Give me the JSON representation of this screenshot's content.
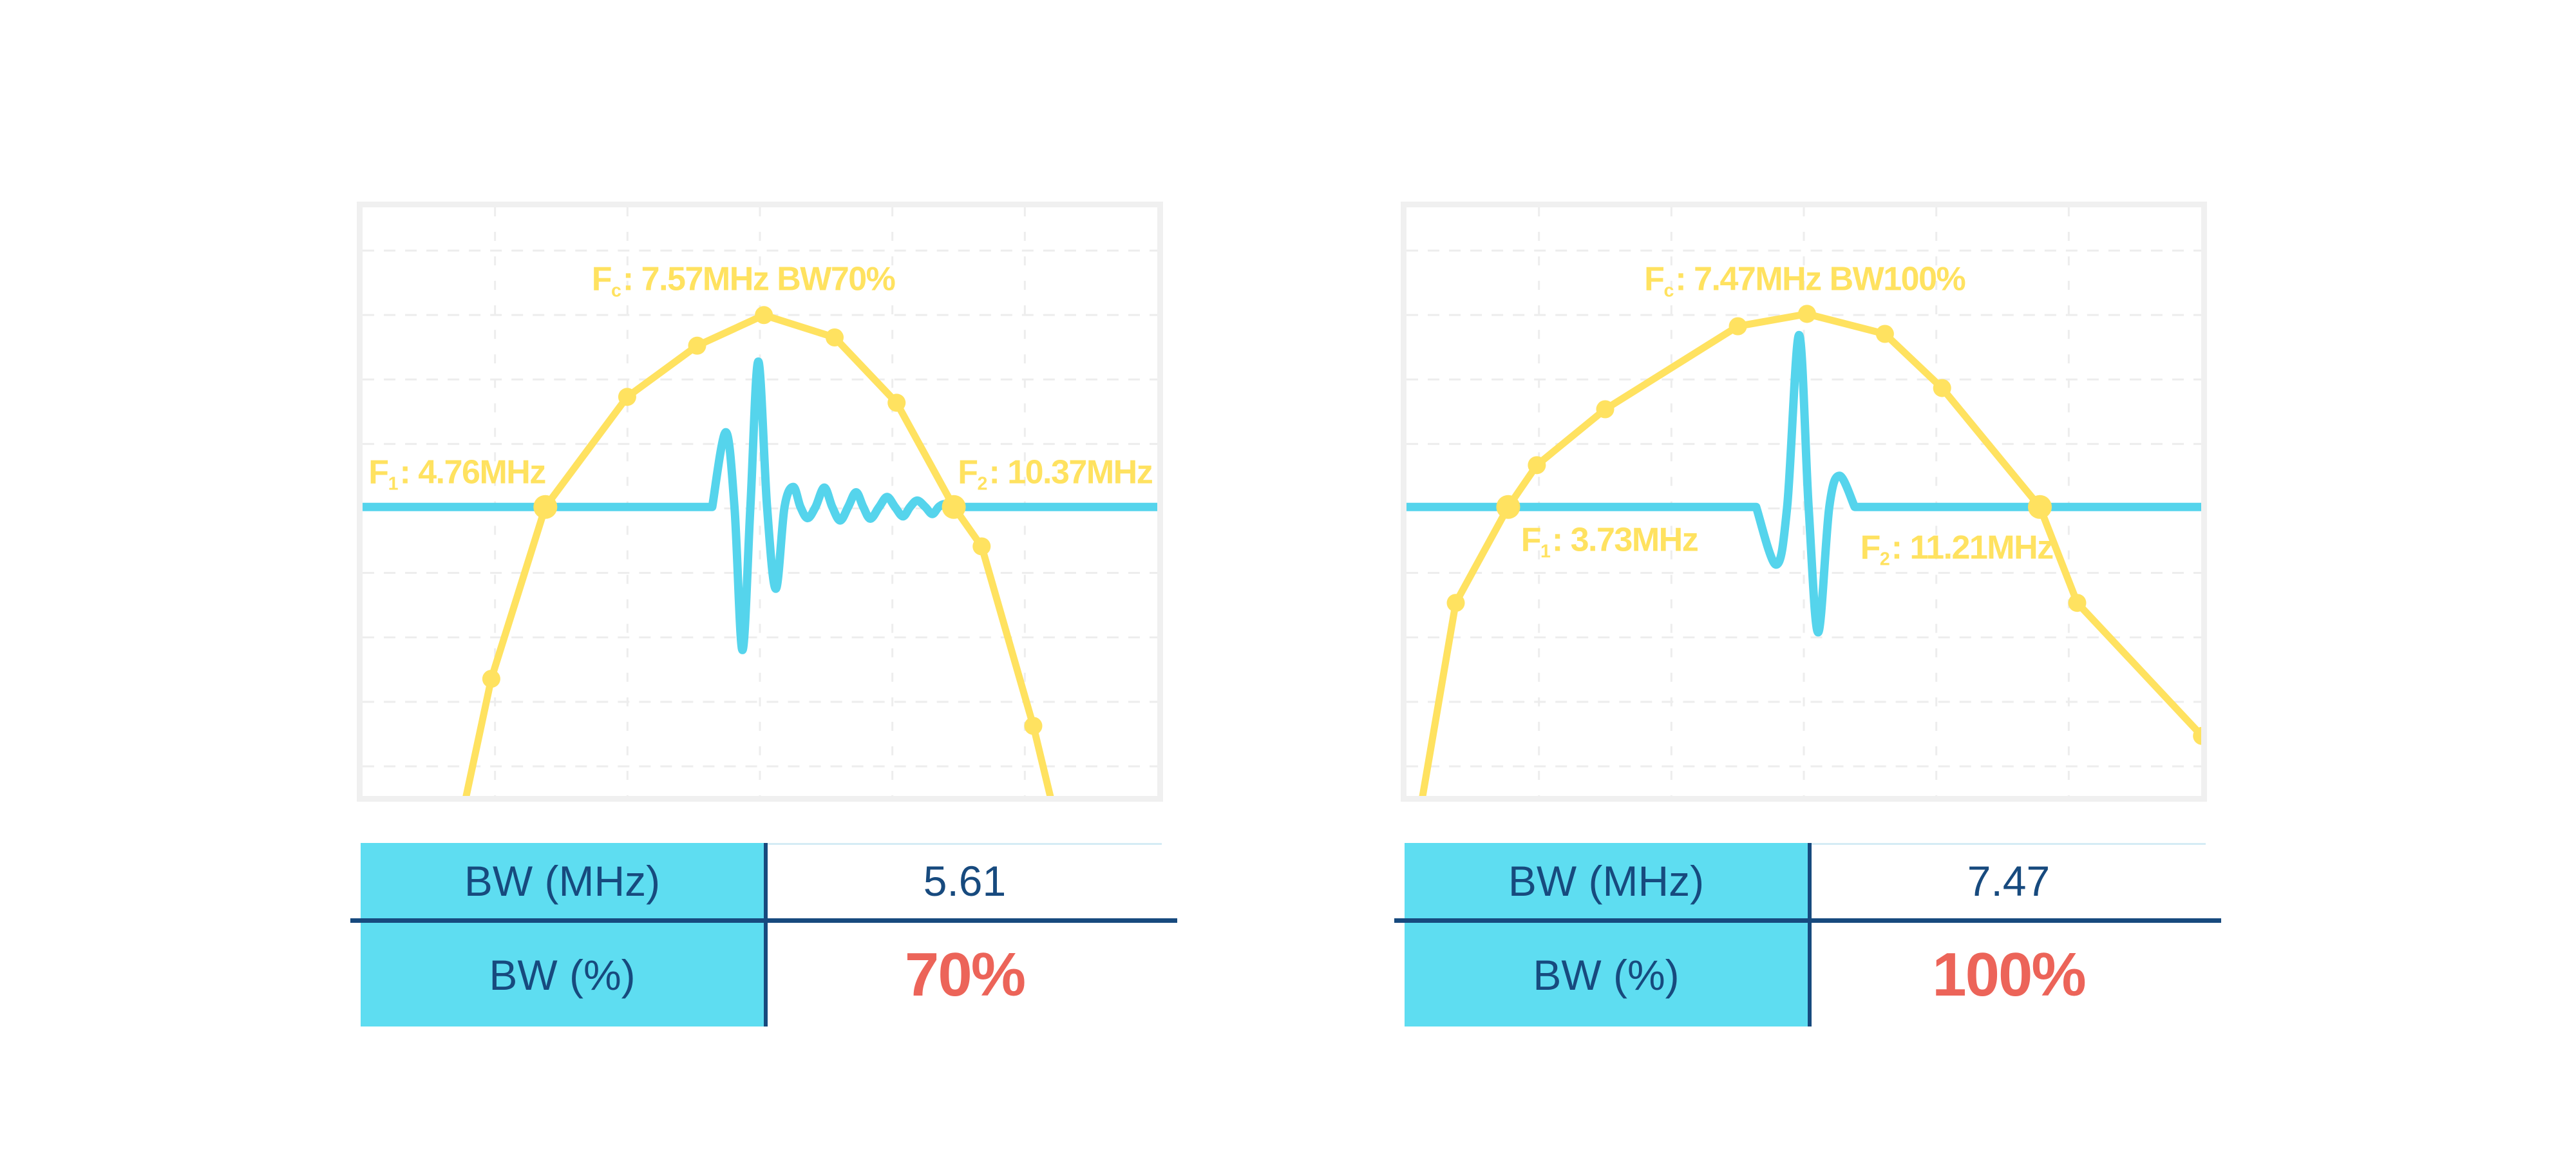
{
  "colors": {
    "spectrum_yellow": "#FFE260",
    "waveform_blue": "#55D4EC",
    "table_cell_cyan": "#5EDDF1",
    "navy": "#174A7E",
    "red": "#EC6459",
    "frame_gray": "#F0F0F0",
    "grid_gray": "#EDEDED",
    "pale_top_border": "#D5ECF5",
    "plot_background": "#FFFFFF"
  },
  "chart_data": [
    {
      "type": "line",
      "name": "pulse-spectrum-narrowband",
      "title": "",
      "xlabel": "",
      "ylabel": "",
      "grid": true,
      "legend_position": "none",
      "annotations": {
        "fc": {
          "pre": "F",
          "sub": "c",
          "text": ": 7.57MHz BW70%"
        },
        "f1": {
          "pre": "F",
          "sub": "1",
          "text": ": 4.76MHz"
        },
        "f2": {
          "pre": "F",
          "sub": "2",
          "text": ": 10.37MHz"
        }
      },
      "center_freq_mhz": 7.57,
      "f1_mhz": 4.76,
      "f2_mhz": 10.37,
      "bw_mhz": 5.61,
      "bw_percent": "70%",
      "baseline_pct": 50.9,
      "spectrum": {
        "points_pct": [
          [
            12.9,
            100.9
          ],
          [
            16.2,
            80.1
          ],
          [
            23.0,
            50.9
          ],
          [
            33.3,
            32.2
          ],
          [
            42.1,
            23.5
          ],
          [
            50.5,
            18.3
          ],
          [
            59.4,
            22.1
          ],
          [
            67.2,
            33.2
          ],
          [
            74.4,
            50.9
          ],
          [
            77.9,
            57.6
          ],
          [
            84.4,
            88.1
          ],
          [
            86.8,
            101.5
          ]
        ],
        "freq_mhz_est": [
          3.68,
          4.04,
          4.76,
          5.89,
          6.85,
          7.77,
          8.74,
          9.6,
          10.37,
          10.75,
          11.46,
          11.72
        ],
        "amp_rel_est": [
          -1.53,
          -0.89,
          0,
          0.57,
          0.84,
          1.0,
          0.88,
          0.54,
          0,
          -0.21,
          -1.14,
          -1.55
        ],
        "marker_small": [
          1,
          3,
          4,
          5,
          6,
          7,
          9,
          10
        ],
        "marker_big": [
          2,
          8
        ]
      },
      "pulse": {
        "osc_points_pct": [
          [
            44.0,
            50.9
          ],
          [
            45.7,
            38.2
          ],
          [
            46.8,
            50.9
          ],
          [
            47.8,
            75.2
          ],
          [
            48.8,
            50.9
          ],
          [
            49.8,
            26.2
          ],
          [
            50.9,
            50.9
          ],
          [
            52.0,
            64.8
          ],
          [
            53.1,
            50.9
          ],
          [
            54.2,
            47.5
          ],
          [
            55.1,
            50.9
          ],
          [
            56.0,
            52.8
          ],
          [
            57.0,
            50.9
          ],
          [
            58.1,
            47.6
          ],
          [
            59.1,
            50.9
          ],
          [
            60.1,
            53.2
          ],
          [
            61.1,
            50.9
          ],
          [
            62.1,
            48.4
          ],
          [
            63.0,
            50.9
          ],
          [
            63.9,
            52.9
          ],
          [
            65.0,
            50.9
          ],
          [
            66.0,
            49.2
          ],
          [
            67.0,
            50.9
          ],
          [
            68.0,
            52.5
          ],
          [
            68.9,
            50.9
          ],
          [
            69.8,
            49.8
          ],
          [
            70.8,
            50.9
          ],
          [
            71.7,
            52.1
          ],
          [
            72.5,
            50.9
          ],
          [
            73.3,
            50.4
          ],
          [
            74.4,
            50.9
          ]
        ]
      }
    },
    {
      "type": "line",
      "name": "pulse-spectrum-broadband",
      "title": "",
      "xlabel": "",
      "ylabel": "",
      "grid": true,
      "legend_position": "none",
      "annotations": {
        "fc": {
          "pre": "F",
          "sub": "c",
          "text": ": 7.47MHz BW100%"
        },
        "f1": {
          "pre": "F",
          "sub": "1",
          "text": ": 3.73MHz"
        },
        "f2": {
          "pre": "F",
          "sub": "2",
          "text": ": 11.21MHz"
        }
      },
      "center_freq_mhz": 7.47,
      "f1_mhz": 3.73,
      "f2_mhz": 11.21,
      "bw_mhz": 7.47,
      "bw_percent": "100%",
      "baseline_pct": 50.9,
      "spectrum": {
        "points_pct": [
          [
            1.7,
            102.6
          ],
          [
            6.2,
            67.2
          ],
          [
            12.8,
            50.9
          ],
          [
            16.4,
            43.8
          ],
          [
            25.0,
            34.3
          ],
          [
            41.7,
            20.2
          ],
          [
            50.4,
            18.1
          ],
          [
            60.2,
            21.5
          ],
          [
            67.4,
            30.7
          ],
          [
            79.7,
            50.9
          ],
          [
            84.4,
            67.2
          ],
          [
            100.1,
            89.8
          ]
        ],
        "freq_mhz_est": [
          2.49,
          3.0,
          3.73,
          4.13,
          5.09,
          6.96,
          7.93,
          9.03,
          9.83,
          11.21,
          11.73,
          13.49
        ],
        "amp_rel_est": [
          -1.58,
          -0.5,
          0,
          0.22,
          0.51,
          0.94,
          1.0,
          0.9,
          0.62,
          0,
          -0.5,
          -1.15
        ],
        "marker_small": [
          1,
          3,
          4,
          5,
          6,
          7,
          8,
          10,
          11
        ],
        "marker_big": [
          2,
          9
        ]
      },
      "pulse": {
        "osc_points_pct": [
          [
            44.0,
            50.9
          ],
          [
            46.5,
            60.7
          ],
          [
            47.9,
            50.9
          ],
          [
            49.4,
            21.7
          ],
          [
            50.6,
            50.9
          ],
          [
            51.8,
            72.2
          ],
          [
            53.2,
            50.9
          ],
          [
            54.5,
            45.6
          ],
          [
            56.4,
            50.9
          ]
        ]
      }
    }
  ],
  "tables": [
    {
      "rows": [
        {
          "label": "BW (MHz)",
          "value": "5.61"
        },
        {
          "label": "BW (%)",
          "value": "70%"
        }
      ]
    },
    {
      "rows": [
        {
          "label": "BW (MHz)",
          "value": "7.47"
        },
        {
          "label": "BW (%)",
          "value": "100%"
        }
      ]
    }
  ]
}
